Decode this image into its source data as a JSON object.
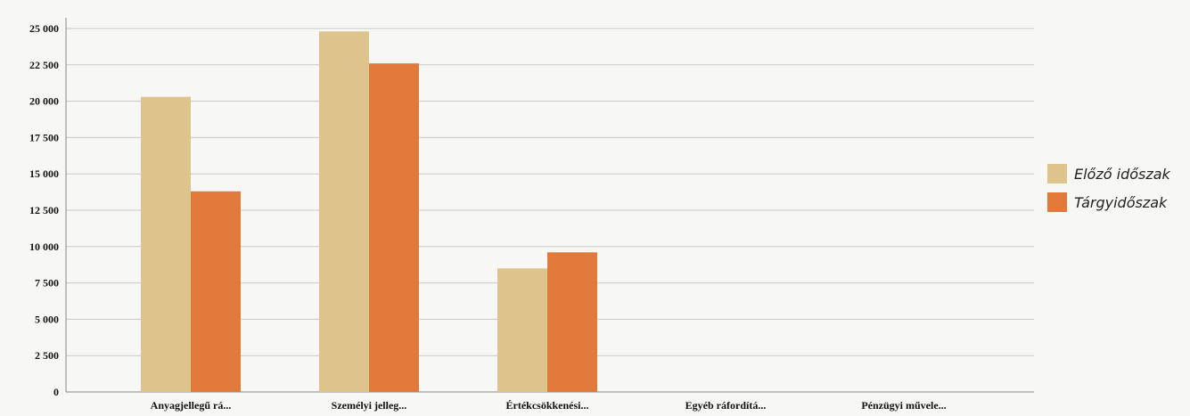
{
  "chart_data": {
    "type": "bar",
    "categories": [
      "Anyagjellegű rá...",
      "Személyi jelleg...",
      "Értékcsökkenési...",
      "Egyéb ráfordítá...",
      "Pénzügyi művele..."
    ],
    "series": [
      {
        "name": "Előző időszak",
        "color": "#dcc48c",
        "values": [
          20300,
          24800,
          8500,
          0,
          0
        ]
      },
      {
        "name": "Tárgyidőszak",
        "color": "#e0793a",
        "values": [
          13800,
          22600,
          9600,
          0,
          0
        ]
      }
    ],
    "ylim": [
      0,
      25000
    ],
    "yticks": [
      0,
      2500,
      5000,
      7500,
      10000,
      12500,
      15000,
      17500,
      20000,
      22500,
      25000
    ],
    "ytick_labels": [
      "0",
      "2 500",
      "5 000",
      "7 500",
      "10 000",
      "12 500",
      "15 000",
      "17 500",
      "20 000",
      "22 500",
      "25 000"
    ],
    "grid": true,
    "legend": "right"
  }
}
